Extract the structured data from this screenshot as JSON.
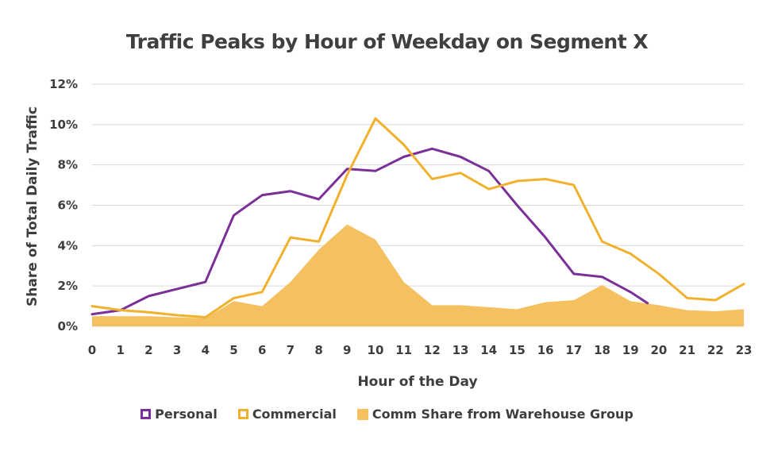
{
  "chart_data": {
    "type": "line",
    "title": "Traffic Peaks by Hour of Weekday on Segment X",
    "xlabel": "Hour of the Day",
    "ylabel": "Share of Total Daily Traffic",
    "x": [
      0,
      1,
      2,
      3,
      4,
      5,
      6,
      7,
      8,
      9,
      10,
      11,
      12,
      13,
      14,
      15,
      16,
      17,
      18,
      19,
      20,
      21,
      22,
      23
    ],
    "x_tick_labels": [
      "0",
      "1",
      "2",
      "3",
      "4",
      "5",
      "6",
      "7",
      "8",
      "9",
      "10",
      "11",
      "12",
      "13",
      "14",
      "15",
      "16",
      "17",
      "18",
      "19",
      "20",
      "21",
      "22",
      "23"
    ],
    "ylim": [
      0,
      12
    ],
    "y_ticks": [
      0,
      2,
      4,
      6,
      8,
      10,
      12
    ],
    "y_tick_labels": [
      "0%",
      "2%",
      "4%",
      "6%",
      "8%",
      "10%",
      "12%"
    ],
    "grid": true,
    "legend_position": "bottom",
    "series": [
      {
        "name": "Personal",
        "type": "line",
        "color": "#7b2f99",
        "x": [
          0,
          1,
          2,
          3,
          4,
          5,
          6,
          7,
          8,
          9,
          10,
          11,
          12,
          13,
          14,
          15,
          16,
          17,
          18,
          19,
          19.6
        ],
        "values": [
          0.6,
          0.8,
          1.5,
          1.85,
          2.2,
          5.5,
          6.5,
          6.7,
          6.3,
          7.8,
          7.7,
          8.4,
          8.8,
          8.4,
          7.7,
          6.0,
          4.4,
          2.6,
          2.45,
          1.7,
          1.15
        ]
      },
      {
        "name": "Commercial",
        "type": "line",
        "color": "#f1b12c",
        "x": [
          0,
          1,
          2,
          3,
          4,
          5,
          6,
          7,
          8,
          9,
          10,
          11,
          12,
          13,
          14,
          15,
          16,
          17,
          18,
          19,
          20,
          21,
          22,
          23
        ],
        "values": [
          1.0,
          0.8,
          0.7,
          0.55,
          0.45,
          1.4,
          1.7,
          4.4,
          4.2,
          7.5,
          10.3,
          9.0,
          7.3,
          7.6,
          6.8,
          7.2,
          7.3,
          7.0,
          4.2,
          3.6,
          2.6,
          1.4,
          1.3,
          2.1
        ]
      },
      {
        "name": "Comm Share from Warehouse Group",
        "type": "area",
        "color": "#f5c160",
        "x": [
          0,
          1,
          2,
          3,
          4,
          5,
          6,
          7,
          8,
          9,
          10,
          11,
          12,
          13,
          14,
          15,
          16,
          17,
          18,
          19,
          20,
          21,
          22,
          23
        ],
        "values": [
          0.5,
          0.5,
          0.5,
          0.45,
          0.4,
          1.25,
          1.0,
          2.2,
          3.8,
          5.05,
          4.3,
          2.2,
          1.05,
          1.05,
          0.95,
          0.85,
          1.2,
          1.3,
          2.05,
          1.25,
          1.05,
          0.8,
          0.75,
          0.85
        ]
      }
    ]
  }
}
